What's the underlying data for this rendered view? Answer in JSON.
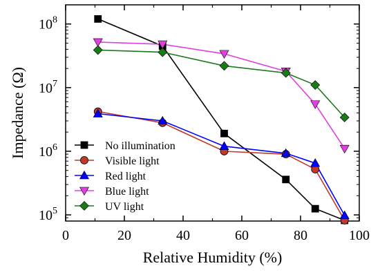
{
  "chart_data": {
    "type": "line",
    "title": "",
    "xlabel": "Relative Humidity (%)",
    "ylabel": "Impedance (Ω)",
    "xlim": [
      0,
      100
    ],
    "ylim": [
      80000,
      200000000
    ],
    "yscale": "log",
    "grid": false,
    "legend_position": "bottom-left",
    "x_ticks": [
      "0",
      "20",
      "40",
      "60",
      "80",
      "100"
    ],
    "y_ticks": [
      {
        "base": "10",
        "exp": "5",
        "value": 100000
      },
      {
        "base": "10",
        "exp": "6",
        "value": 1000000
      },
      {
        "base": "10",
        "exp": "7",
        "value": 10000000
      },
      {
        "base": "10",
        "exp": "8",
        "value": 100000000
      }
    ],
    "x": [
      11,
      33,
      54,
      75,
      85,
      95
    ],
    "series": [
      {
        "name": "No illumination",
        "color": "#000000",
        "fill": "#000000",
        "marker": "square",
        "values": [
          120000000,
          45000000,
          1900000,
          360000,
          125000,
          82000
        ]
      },
      {
        "name": "Visible light",
        "color": "#c0392b",
        "fill": "#c0392b",
        "marker": "circle",
        "values": [
          4200000,
          2800000,
          1000000,
          900000,
          520000,
          82000
        ]
      },
      {
        "name": "Red light",
        "color": "#0000ff",
        "fill": "#0000ff",
        "marker": "triangle-up",
        "values": [
          3900000,
          3000000,
          1200000,
          930000,
          650000,
          98000
        ]
      },
      {
        "name": "Blue light",
        "color": "#e040e0",
        "fill": "#e040e0",
        "marker": "triangle-down",
        "values": [
          52000000,
          48000000,
          34000000,
          18000000,
          5500000,
          1100000
        ]
      },
      {
        "name": "UV light",
        "color": "#1a7a1a",
        "fill": "#1a7a1a",
        "marker": "diamond",
        "values": [
          39000000,
          36000000,
          22000000,
          17000000,
          11000000,
          3400000
        ]
      }
    ]
  }
}
